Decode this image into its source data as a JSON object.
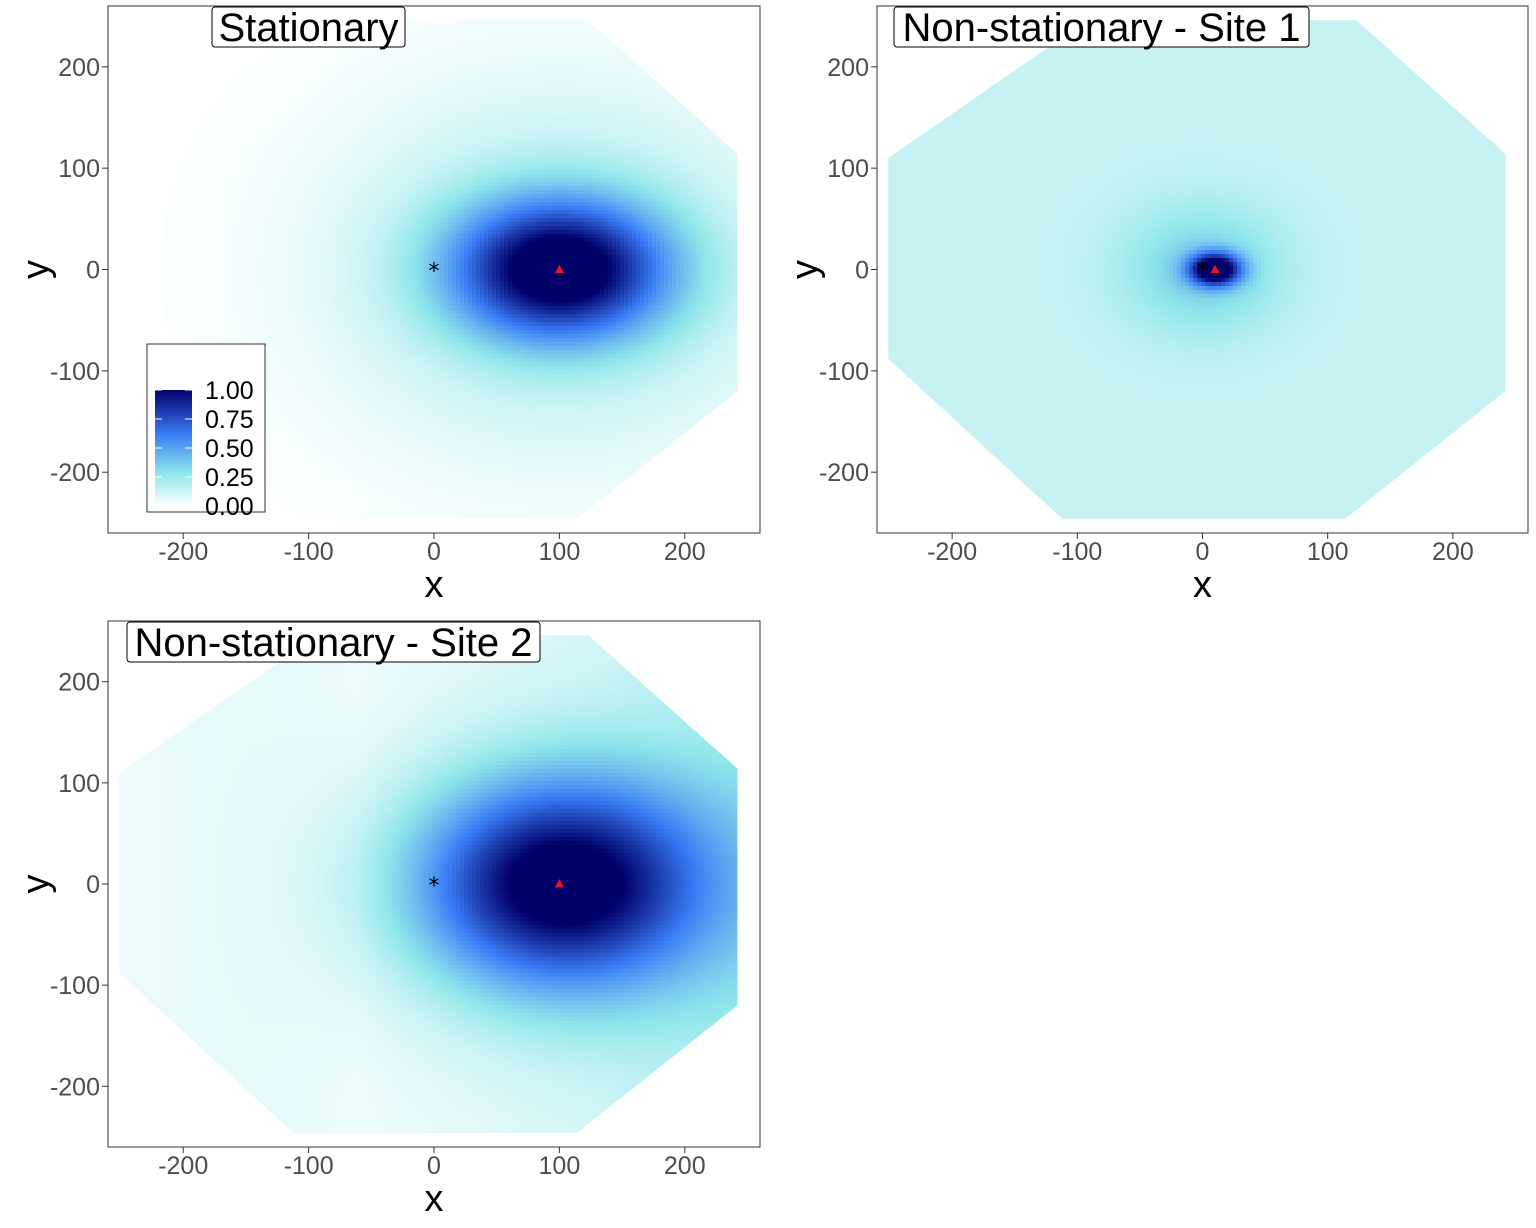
{
  "chart_data": [
    {
      "type": "heatmap",
      "title": "Stationary",
      "xlabel": "x",
      "ylabel": "y",
      "xlim": [
        -260,
        260
      ],
      "ylim": [
        -260,
        260
      ],
      "x_ticks": [
        -200,
        -100,
        0,
        100,
        200
      ],
      "y_ticks": [
        -200,
        -100,
        0,
        100,
        200
      ],
      "grid": false,
      "domain_shape": "octagon",
      "field": {
        "peak_at": [
          100,
          0
        ],
        "peak_value": 1.0,
        "spread_x": 60,
        "spread_y": 48,
        "tilt": 0.2
      },
      "reference_point": {
        "symbol": "*",
        "x": 0,
        "y": 0,
        "color": "#000000"
      },
      "target_point": {
        "symbol": "triangle",
        "x": 100,
        "y": 0,
        "color": "#e8141e"
      },
      "legend": {
        "placement": "bottom-left",
        "ticks": [
          "1.00",
          "0.75",
          "0.50",
          "0.25",
          "0.00"
        ]
      }
    },
    {
      "type": "heatmap",
      "title": "Non-stationary - Site 1",
      "xlabel": "x",
      "ylabel": "y",
      "xlim": [
        -260,
        260
      ],
      "ylim": [
        -260,
        260
      ],
      "x_ticks": [
        -200,
        -100,
        0,
        100,
        200
      ],
      "y_ticks": [
        -200,
        -100,
        0,
        100,
        200
      ],
      "grid": false,
      "domain_shape": "octagon",
      "field": {
        "peak_at": [
          10,
          0
        ],
        "peak_value": 1.0,
        "spread_x": 14,
        "spread_y": 11,
        "background": 0.14
      },
      "reference_point": {
        "symbol": "*",
        "x": 0,
        "y": 0,
        "color": "#000000"
      },
      "target_point": {
        "symbol": "triangle",
        "x": 10,
        "y": 0,
        "color": "#e8141e"
      }
    },
    {
      "type": "heatmap",
      "title": "Non-stationary - Site 2",
      "xlabel": "x",
      "ylabel": "y",
      "xlim": [
        -260,
        260
      ],
      "ylim": [
        -260,
        260
      ],
      "x_ticks": [
        -200,
        -100,
        0,
        100,
        200
      ],
      "y_ticks": [
        -200,
        -100,
        0,
        100,
        200
      ],
      "grid": false,
      "domain_shape": "octagon",
      "field": {
        "peak_at": [
          100,
          0
        ],
        "peak_value": 1.0,
        "spread_x": 80,
        "spread_y": 72
      },
      "reference_point": {
        "symbol": "*",
        "x": 0,
        "y": 0,
        "color": "#000000"
      },
      "target_point": {
        "symbol": "triangle",
        "x": 100,
        "y": 0,
        "color": "#e8141e"
      }
    }
  ],
  "colors": {
    "scale": [
      "#ffffff",
      "#8fe6ea",
      "#3a7cf6",
      "#00006a"
    ],
    "panel_border": "#333333",
    "tick_text": "#4d4d4d",
    "title_text": "#000000"
  }
}
